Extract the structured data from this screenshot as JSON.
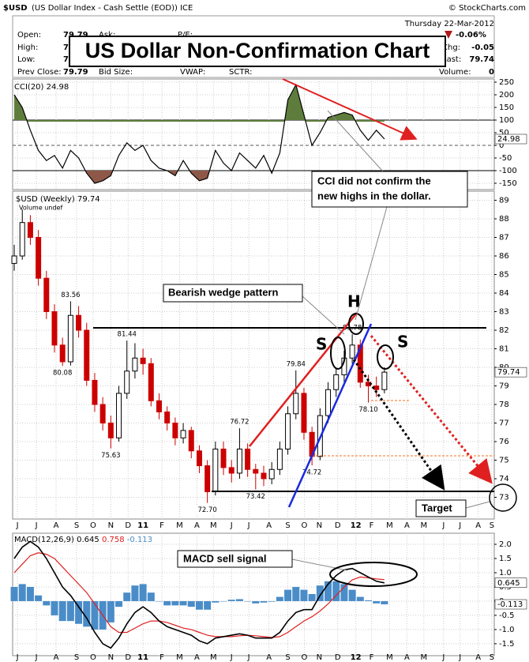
{
  "header": {
    "symbol": "$USD",
    "description": "(US Dollar Index - Cash Settle (EOD)) ICE",
    "credit": "© StockCharts.com",
    "date": "Thursday  22-Mar-2012",
    "change_pct": "-0.06%",
    "open_label": "Open:",
    "open": "79.79",
    "ask_label": "Ask:",
    "pe_label": "P/E:",
    "high_label": "High:",
    "high": "7",
    "low_label": "Low:",
    "low": "7",
    "prev_close_label": "Prev Close:",
    "prev_close": "79.79",
    "bid_size_label": "Bid Size:",
    "vwap_label": "VWAP:",
    "sctr_label": "SCTR:",
    "chg_label": "Chg:",
    "chg": "-0.05",
    "last_label": "Last:",
    "last": "79.74",
    "volume_label": "Volume:",
    "volume": "0",
    "title": "US Dollar Non-Confirmation Chart"
  },
  "chart_data": [
    {
      "type": "line",
      "title": "CCI(20)",
      "color": "#000000",
      "overbought_color": "#5e7d3c",
      "oversold_color": "#8e5848",
      "x": [
        0,
        2,
        4,
        6,
        8,
        10,
        12,
        14,
        16,
        18,
        20,
        22,
        24,
        26,
        28,
        30,
        32,
        34,
        36,
        38,
        40,
        42,
        44,
        46,
        48,
        50,
        52,
        54,
        56,
        58,
        60,
        62,
        64,
        66,
        68,
        70,
        72,
        74,
        76,
        78,
        80,
        82,
        84,
        86,
        88,
        90,
        92
      ],
      "values": [
        200,
        150,
        60,
        -20,
        -60,
        -40,
        -90,
        -20,
        -50,
        -110,
        -150,
        -140,
        -120,
        -40,
        10,
        -20,
        0,
        -60,
        -90,
        -100,
        -120,
        -60,
        -110,
        -140,
        -130,
        -20,
        -70,
        -100,
        -30,
        -60,
        -90,
        -40,
        -110,
        -30,
        180,
        240,
        120,
        0,
        50,
        110,
        120,
        130,
        120,
        60,
        20,
        60,
        24.98
      ],
      "xlim": [
        -0.4,
        119.3
      ],
      "ylim": [
        -175,
        262.5
      ],
      "yticks": [
        -150,
        -100,
        -50,
        0,
        50,
        100,
        150,
        200,
        250
      ],
      "grid": true
    },
    {
      "type": "candlestick",
      "title": "$USD (Weekly)",
      "volume_note": "Volume undef",
      "up_color": "#000000",
      "down_color": "#cc0000",
      "x": [
        0,
        2,
        4,
        6,
        8,
        10,
        12,
        14,
        16,
        18,
        20,
        22,
        24,
        26,
        28,
        30,
        32,
        34,
        36,
        38,
        40,
        42,
        44,
        46,
        48,
        50,
        52,
        54,
        56,
        58,
        60,
        62,
        64,
        66,
        68,
        70,
        72,
        74,
        76,
        78,
        80,
        82,
        84,
        86,
        88,
        90,
        92
      ],
      "open": [
        85.6,
        86.0,
        87.8,
        87.0,
        84.8,
        83.0,
        81.2,
        80.3,
        82.8,
        82.0,
        79.3,
        78.0,
        77.0,
        76.2,
        78.6,
        79.8,
        80.5,
        80.2,
        78.2,
        77.6,
        77.0,
        76.2,
        76.6,
        75.5,
        74.7,
        73.3,
        75.6,
        74.6,
        74.3,
        75.6,
        74.5,
        74.3,
        74.0,
        74.5,
        75.6,
        77.5,
        78.6,
        76.5,
        75.2,
        77.4,
        78.8,
        79.6,
        80.5,
        81.2,
        79.2,
        79.0,
        78.8
      ],
      "high": [
        86.6,
        88.5,
        88.2,
        87.4,
        85.2,
        83.4,
        81.6,
        83.56,
        83.3,
        82.4,
        79.7,
        78.4,
        77.4,
        79.0,
        81.44,
        81.3,
        81.0,
        80.5,
        78.6,
        77.9,
        77.3,
        77.0,
        76.8,
        75.8,
        75.0,
        76.0,
        76.0,
        75.0,
        76.72,
        75.9,
        74.8,
        74.7,
        74.9,
        76.0,
        77.9,
        79.84,
        78.9,
        76.8,
        77.8,
        79.2,
        80.0,
        80.9,
        81.78,
        81.5,
        79.6,
        79.5,
        80.0
      ],
      "low": [
        85.2,
        85.8,
        86.6,
        84.4,
        82.6,
        80.8,
        80.08,
        80.1,
        81.6,
        79.0,
        77.6,
        76.6,
        75.63,
        76.0,
        78.3,
        79.4,
        79.6,
        77.9,
        77.2,
        76.6,
        75.8,
        75.9,
        75.1,
        74.3,
        72.7,
        73.1,
        74.2,
        73.8,
        74.0,
        74.1,
        73.42,
        73.6,
        73.7,
        74.2,
        75.3,
        77.2,
        76.1,
        74.72,
        75.0,
        77.0,
        78.4,
        79.2,
        80.2,
        78.9,
        78.1,
        78.4,
        78.6
      ],
      "close": [
        86.0,
        87.8,
        87.0,
        84.8,
        83.0,
        81.2,
        80.3,
        82.8,
        82.0,
        79.3,
        78.0,
        77.0,
        76.2,
        78.6,
        79.8,
        80.5,
        80.2,
        78.2,
        77.6,
        77.0,
        76.2,
        76.6,
        75.5,
        74.7,
        73.3,
        75.6,
        74.6,
        74.3,
        75.6,
        74.5,
        74.3,
        74.0,
        74.5,
        75.6,
        77.5,
        78.6,
        76.5,
        75.2,
        77.4,
        78.8,
        79.6,
        80.5,
        81.2,
        79.2,
        79.0,
        78.8,
        79.74
      ],
      "point_labels": [
        "83.56",
        "80.08",
        "75.63",
        "81.44",
        "72.70",
        "76.72",
        "73.42",
        "79.84",
        "74.72",
        "81.78",
        "78.10"
      ],
      "annotations": {
        "wedge": "Bearish wedge pattern",
        "head": "H",
        "left_shoulder": "S",
        "right_shoulder": "S",
        "target": "Target",
        "cci_note": [
          "CCI did not confirm the",
          "new highs in the dollar."
        ]
      },
      "xlim": [
        -0.4,
        119.3
      ],
      "ylim": [
        71.83,
        89.49
      ],
      "yticks": [
        73,
        74,
        75,
        76,
        77,
        78,
        79,
        80,
        81,
        82,
        83,
        84,
        85,
        86,
        87,
        88,
        89
      ],
      "grid": true,
      "xticks": [
        {
          "value": 0.8,
          "label": "J"
        },
        {
          "value": 5.5,
          "label": "J"
        },
        {
          "value": 10.4,
          "label": "A"
        },
        {
          "value": 15.5,
          "label": "S"
        },
        {
          "value": 19.6,
          "label": "O"
        },
        {
          "value": 24.0,
          "label": "N"
        },
        {
          "value": 28.3,
          "label": "D"
        },
        {
          "value": 32.0,
          "label": "11"
        },
        {
          "value": 36.7,
          "label": "F"
        },
        {
          "value": 41.1,
          "label": "M"
        },
        {
          "value": 45.4,
          "label": "A"
        },
        {
          "value": 49.5,
          "label": "M"
        },
        {
          "value": 54.0,
          "label": "J"
        },
        {
          "value": 58.3,
          "label": "J"
        },
        {
          "value": 63.3,
          "label": "A"
        },
        {
          "value": 68.0,
          "label": "S"
        },
        {
          "value": 72.1,
          "label": "O"
        },
        {
          "value": 75.8,
          "label": "N"
        },
        {
          "value": 80.4,
          "label": "D"
        },
        {
          "value": 84.9,
          "label": "12"
        },
        {
          "value": 88.8,
          "label": "F"
        },
        {
          "value": 93.3,
          "label": "M"
        },
        {
          "value": 97.6,
          "label": "A"
        },
        {
          "value": 101.8,
          "label": "M"
        },
        {
          "value": 106.7,
          "label": "J"
        },
        {
          "value": 110.8,
          "label": "J"
        },
        {
          "value": 115.3,
          "label": "A"
        },
        {
          "value": 118.7,
          "label": "S"
        }
      ]
    },
    {
      "type": "macd",
      "title": "MACD(12,26,9)",
      "annotation": "MACD sell signal",
      "x": [
        0,
        2,
        4,
        6,
        8,
        10,
        12,
        14,
        16,
        18,
        20,
        22,
        24,
        26,
        28,
        30,
        32,
        34,
        36,
        38,
        40,
        42,
        44,
        46,
        48,
        50,
        52,
        54,
        56,
        58,
        60,
        62,
        64,
        66,
        68,
        70,
        72,
        74,
        76,
        78,
        80,
        82,
        84,
        86,
        88,
        90,
        92
      ],
      "series": [
        {
          "color": "#000000",
          "values": [
            1.5,
            1.9,
            2.1,
            1.9,
            1.5,
            1.0,
            0.5,
            0.2,
            -0.2,
            -0.6,
            -1.1,
            -1.5,
            -1.65,
            -1.3,
            -0.8,
            -0.4,
            -0.2,
            -0.4,
            -0.7,
            -0.9,
            -1.0,
            -1.1,
            -1.2,
            -1.4,
            -1.5,
            -1.3,
            -1.25,
            -1.2,
            -1.15,
            -1.2,
            -1.3,
            -1.3,
            -1.3,
            -1.1,
            -0.7,
            -0.4,
            -0.3,
            -0.3,
            0.2,
            0.6,
            0.9,
            1.1,
            1.15,
            1.0,
            0.85,
            0.7,
            0.645
          ]
        },
        {
          "color": "#e02020",
          "values": [
            1.0,
            1.3,
            1.6,
            1.7,
            1.65,
            1.5,
            1.2,
            0.9,
            0.6,
            0.3,
            -0.1,
            -0.5,
            -0.9,
            -1.1,
            -1.1,
            -0.95,
            -0.8,
            -0.7,
            -0.7,
            -0.75,
            -0.85,
            -0.95,
            -1.0,
            -1.1,
            -1.2,
            -1.25,
            -1.25,
            -1.25,
            -1.22,
            -1.2,
            -1.22,
            -1.25,
            -1.28,
            -1.25,
            -1.1,
            -0.9,
            -0.7,
            -0.55,
            -0.35,
            -0.1,
            0.2,
            0.5,
            0.75,
            0.85,
            0.82,
            0.78,
            0.758
          ]
        },
        {
          "color": "#4a8cc8",
          "values": [
            0.5,
            0.6,
            0.5,
            0.2,
            -0.15,
            -0.5,
            -0.7,
            -0.7,
            -0.8,
            -0.9,
            -1.0,
            -1.0,
            -0.75,
            -0.2,
            0.3,
            0.55,
            0.6,
            0.3,
            0.0,
            -0.15,
            -0.15,
            -0.15,
            -0.2,
            -0.3,
            -0.3,
            -0.05,
            0.0,
            0.05,
            0.07,
            0.0,
            -0.08,
            -0.05,
            -0.02,
            0.15,
            0.4,
            0.5,
            0.4,
            0.25,
            0.55,
            0.7,
            0.7,
            0.6,
            0.4,
            0.15,
            0.03,
            -0.08,
            -0.113
          ]
        }
      ],
      "xlim": [
        -0.4,
        119.3
      ],
      "ylim": [
        -1.92,
        2.39
      ],
      "yticks": [
        -1.5,
        {
          "value": -1.0,
          "label": "-1.0"
        },
        -0.5,
        0,
        0.5,
        {
          "value": 1.0,
          "label": "1.0"
        },
        1.5,
        {
          "value": 2.0,
          "label": "2.0"
        }
      ],
      "grid": true,
      "xticks": [
        {
          "value": 0.8,
          "label": "J"
        },
        {
          "value": 5.5,
          "label": "J"
        },
        {
          "value": 10.4,
          "label": "A"
        },
        {
          "value": 15.5,
          "label": "S"
        },
        {
          "value": 19.6,
          "label": "O"
        },
        {
          "value": 24.0,
          "label": "N"
        },
        {
          "value": 28.3,
          "label": "D"
        },
        {
          "value": 32.0,
          "label": "11"
        },
        {
          "value": 36.7,
          "label": "F"
        },
        {
          "value": 41.1,
          "label": "M"
        },
        {
          "value": 45.4,
          "label": "A"
        },
        {
          "value": 49.5,
          "label": "M"
        },
        {
          "value": 54.0,
          "label": "J"
        },
        {
          "value": 58.3,
          "label": "J"
        },
        {
          "value": 63.3,
          "label": "A"
        },
        {
          "value": 68.0,
          "label": "S"
        },
        {
          "value": 72.1,
          "label": "O"
        },
        {
          "value": 75.8,
          "label": "N"
        },
        {
          "value": 80.4,
          "label": "D"
        },
        {
          "value": 84.9,
          "label": "12"
        },
        {
          "value": 88.8,
          "label": "F"
        },
        {
          "value": 93.3,
          "label": "M"
        },
        {
          "value": 97.6,
          "label": "A"
        },
        {
          "value": 101.8,
          "label": "M"
        },
        {
          "value": 106.7,
          "label": "J"
        },
        {
          "value": 110.8,
          "label": "J"
        },
        {
          "value": 115.3,
          "label": "A"
        },
        {
          "value": 118.7,
          "label": "S"
        }
      ]
    }
  ]
}
